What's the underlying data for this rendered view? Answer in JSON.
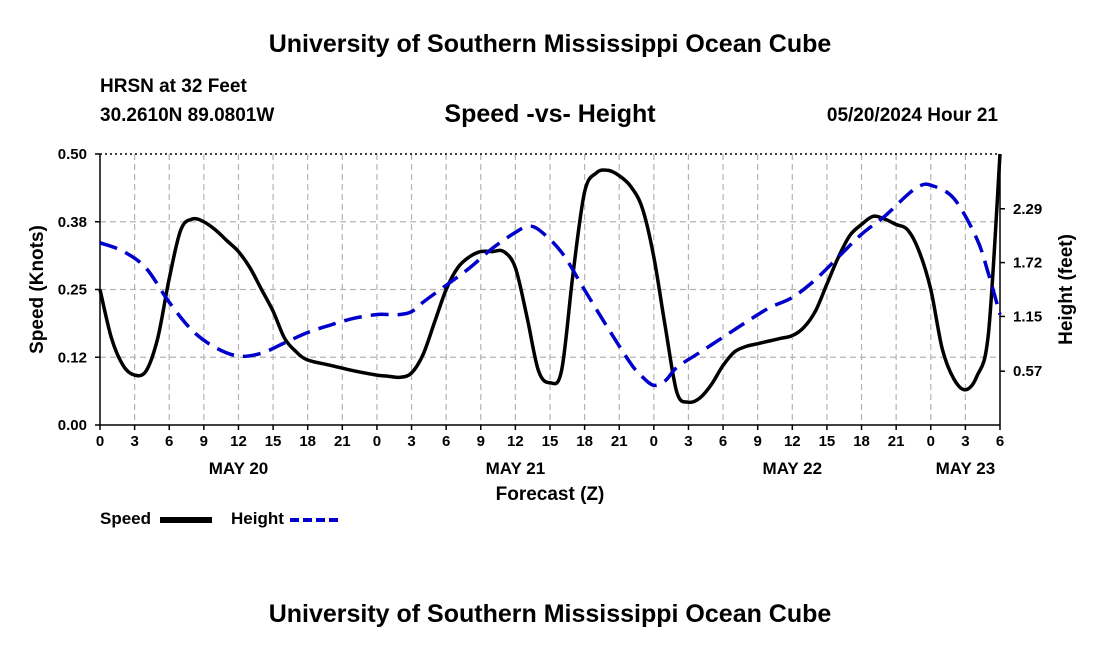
{
  "header": {
    "title": "University of Southern Mississippi Ocean Cube",
    "station": "HRSN at 32 Feet",
    "coords": "30.2610N  89.0801W",
    "subtitle": "Speed -vs- Height",
    "datestamp": "05/20/2024 Hour 21"
  },
  "footer": {
    "title": "University of Southern Mississippi Ocean Cube"
  },
  "legend": {
    "speed_label": "Speed",
    "height_label": "Height"
  },
  "colors": {
    "speed": "#000000",
    "height": "#0000cc",
    "grid": "#b4b4b4"
  },
  "chart_data": {
    "type": "line",
    "xlabel": "Forecast (Z)",
    "ylabel_left": "Speed (Knots)",
    "ylabel_right": "Height (feet)",
    "x_range_hours": [
      0,
      78
    ],
    "x_ticks": [
      {
        "h": 0,
        "label": "0"
      },
      {
        "h": 3,
        "label": "3"
      },
      {
        "h": 6,
        "label": "6"
      },
      {
        "h": 9,
        "label": "9"
      },
      {
        "h": 12,
        "label": "12"
      },
      {
        "h": 15,
        "label": "15"
      },
      {
        "h": 18,
        "label": "18"
      },
      {
        "h": 21,
        "label": "21"
      },
      {
        "h": 24,
        "label": "0"
      },
      {
        "h": 27,
        "label": "3"
      },
      {
        "h": 30,
        "label": "6"
      },
      {
        "h": 33,
        "label": "9"
      },
      {
        "h": 36,
        "label": "12"
      },
      {
        "h": 39,
        "label": "15"
      },
      {
        "h": 42,
        "label": "18"
      },
      {
        "h": 45,
        "label": "21"
      },
      {
        "h": 48,
        "label": "0"
      },
      {
        "h": 51,
        "label": "3"
      },
      {
        "h": 54,
        "label": "6"
      },
      {
        "h": 57,
        "label": "9"
      },
      {
        "h": 60,
        "label": "12"
      },
      {
        "h": 63,
        "label": "15"
      },
      {
        "h": 66,
        "label": "18"
      },
      {
        "h": 69,
        "label": "21"
      },
      {
        "h": 72,
        "label": "0"
      },
      {
        "h": 75,
        "label": "3"
      },
      {
        "h": 78,
        "label": "6"
      }
    ],
    "day_labels": [
      {
        "h": 12,
        "label": "MAY 20"
      },
      {
        "h": 36,
        "label": "MAY 21"
      },
      {
        "h": 60,
        "label": "MAY 22"
      },
      {
        "h": 75,
        "label": "MAY 23"
      }
    ],
    "y_left": {
      "range": [
        0,
        0.5
      ],
      "ticks": [
        0,
        0.125,
        0.25,
        0.375,
        0.5
      ],
      "tick_labels": [
        "0.00",
        "0.12",
        "0.25",
        "0.38",
        "0.50"
      ]
    },
    "y_right": {
      "range": [
        0,
        2.87
      ],
      "ticks": [
        0.57,
        1.15,
        1.72,
        2.29
      ],
      "tick_labels": [
        "0.57",
        "1.15",
        "1.72",
        "2.29"
      ]
    },
    "series": [
      {
        "name": "Speed",
        "axis": "left",
        "style": "solid",
        "points": [
          [
            0,
            0.25
          ],
          [
            1,
            0.16
          ],
          [
            2,
            0.11
          ],
          [
            3,
            0.092
          ],
          [
            4,
            0.1
          ],
          [
            5,
            0.16
          ],
          [
            6,
            0.27
          ],
          [
            7,
            0.36
          ],
          [
            8,
            0.38
          ],
          [
            9,
            0.375
          ],
          [
            10,
            0.36
          ],
          [
            11,
            0.34
          ],
          [
            12,
            0.32
          ],
          [
            13,
            0.29
          ],
          [
            14,
            0.25
          ],
          [
            15,
            0.21
          ],
          [
            16,
            0.16
          ],
          [
            17,
            0.135
          ],
          [
            18,
            0.12
          ],
          [
            20,
            0.11
          ],
          [
            22,
            0.1
          ],
          [
            24,
            0.092
          ],
          [
            25,
            0.09
          ],
          [
            26,
            0.088
          ],
          [
            27,
            0.096
          ],
          [
            28,
            0.13
          ],
          [
            29,
            0.19
          ],
          [
            30,
            0.25
          ],
          [
            31,
            0.29
          ],
          [
            32,
            0.31
          ],
          [
            33,
            0.32
          ],
          [
            34,
            0.32
          ],
          [
            35,
            0.32
          ],
          [
            36,
            0.29
          ],
          [
            37,
            0.2
          ],
          [
            38,
            0.1
          ],
          [
            39,
            0.078
          ],
          [
            40,
            0.1
          ],
          [
            41,
            0.28
          ],
          [
            42,
            0.43
          ],
          [
            43,
            0.465
          ],
          [
            44,
            0.47
          ],
          [
            45,
            0.46
          ],
          [
            46,
            0.44
          ],
          [
            47,
            0.4
          ],
          [
            48,
            0.31
          ],
          [
            49,
            0.18
          ],
          [
            50,
            0.06
          ],
          [
            51,
            0.042
          ],
          [
            52,
            0.05
          ],
          [
            53,
            0.075
          ],
          [
            54,
            0.11
          ],
          [
            55,
            0.135
          ],
          [
            56,
            0.145
          ],
          [
            57,
            0.15
          ],
          [
            58,
            0.155
          ],
          [
            59,
            0.16
          ],
          [
            60,
            0.165
          ],
          [
            61,
            0.18
          ],
          [
            62,
            0.21
          ],
          [
            63,
            0.26
          ],
          [
            64,
            0.31
          ],
          [
            65,
            0.35
          ],
          [
            66,
            0.37
          ],
          [
            67,
            0.385
          ],
          [
            68,
            0.38
          ],
          [
            69,
            0.37
          ],
          [
            70,
            0.36
          ],
          [
            71,
            0.32
          ],
          [
            72,
            0.25
          ],
          [
            73,
            0.14
          ],
          [
            74,
            0.085
          ],
          [
            75,
            0.065
          ],
          [
            76,
            0.09
          ],
          [
            77,
            0.17
          ],
          [
            78,
            0.5
          ]
        ]
      },
      {
        "name": "Height",
        "axis": "right",
        "style": "dashed",
        "points": [
          [
            0,
            1.93
          ],
          [
            2,
            1.84
          ],
          [
            4,
            1.66
          ],
          [
            6,
            1.3
          ],
          [
            8,
            1.0
          ],
          [
            10,
            0.82
          ],
          [
            12,
            0.73
          ],
          [
            14,
            0.76
          ],
          [
            16,
            0.87
          ],
          [
            18,
            0.98
          ],
          [
            20,
            1.06
          ],
          [
            22,
            1.13
          ],
          [
            24,
            1.17
          ],
          [
            25,
            1.17
          ],
          [
            26,
            1.17
          ],
          [
            27,
            1.2
          ],
          [
            28,
            1.3
          ],
          [
            30,
            1.48
          ],
          [
            32,
            1.66
          ],
          [
            34,
            1.87
          ],
          [
            36,
            2.04
          ],
          [
            37,
            2.1
          ],
          [
            38,
            2.07
          ],
          [
            40,
            1.83
          ],
          [
            42,
            1.43
          ],
          [
            44,
            1.03
          ],
          [
            46,
            0.65
          ],
          [
            47,
            0.51
          ],
          [
            48,
            0.42
          ],
          [
            49,
            0.47
          ],
          [
            50,
            0.61
          ],
          [
            52,
            0.77
          ],
          [
            54,
            0.93
          ],
          [
            56,
            1.09
          ],
          [
            58,
            1.24
          ],
          [
            60,
            1.35
          ],
          [
            62,
            1.54
          ],
          [
            64,
            1.78
          ],
          [
            66,
            2.02
          ],
          [
            68,
            2.21
          ],
          [
            70,
            2.44
          ],
          [
            71,
            2.53
          ],
          [
            72,
            2.54
          ],
          [
            74,
            2.4
          ],
          [
            76,
            1.97
          ],
          [
            77,
            1.6
          ],
          [
            78,
            1.17
          ]
        ]
      }
    ]
  }
}
